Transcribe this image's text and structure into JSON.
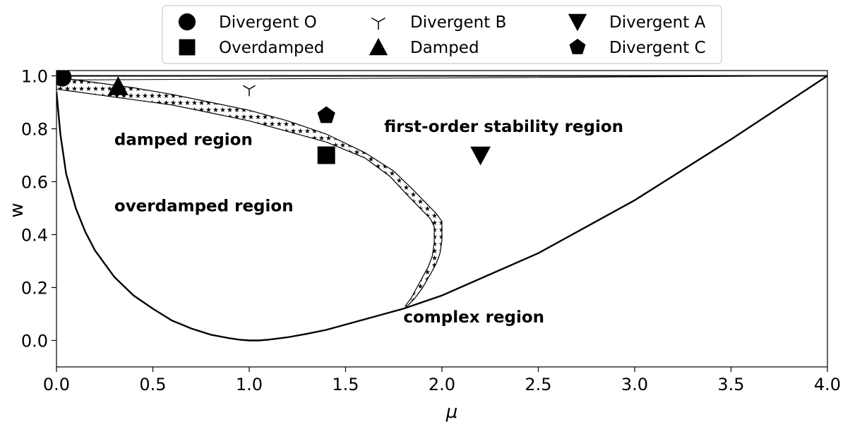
{
  "chart_data": {
    "type": "scatter",
    "xlabel": "μ",
    "ylabel": "w",
    "xlim": [
      0.0,
      4.0
    ],
    "ylim": [
      -0.1,
      1.02
    ],
    "x_ticks": [
      "0.0",
      "0.5",
      "1.0",
      "1.5",
      "2.0",
      "2.5",
      "3.0",
      "3.5",
      "4.0"
    ],
    "y_ticks": [
      "0.0",
      "0.2",
      "0.4",
      "0.6",
      "0.8",
      "1.0"
    ],
    "grid": false,
    "legend_position": "top-center",
    "legend": [
      {
        "name": "Divergent O",
        "marker": "circle"
      },
      {
        "name": "Overdamped",
        "marker": "square"
      },
      {
        "name": "Divergent B",
        "marker": "tri-y"
      },
      {
        "name": "Damped",
        "marker": "triangle-up"
      },
      {
        "name": "Divergent A",
        "marker": "triangle-down"
      },
      {
        "name": "Divergent C",
        "marker": "pentagon"
      }
    ],
    "series": [
      {
        "name": "Divergent O",
        "marker": "circle",
        "x": [
          0.03
        ],
        "y": [
          0.995
        ]
      },
      {
        "name": "Damped",
        "marker": "triangle-up",
        "x": [
          0.32
        ],
        "y": [
          0.96
        ]
      },
      {
        "name": "Divergent B",
        "marker": "tri-y",
        "x": [
          1.0
        ],
        "y": [
          0.95
        ]
      },
      {
        "name": "Divergent C",
        "marker": "pentagon",
        "x": [
          1.4
        ],
        "y": [
          0.85
        ]
      },
      {
        "name": "Overdamped",
        "marker": "square",
        "x": [
          1.4
        ],
        "y": [
          0.7
        ]
      },
      {
        "name": "Divergent A",
        "marker": "triangle-down",
        "x": [
          2.2
        ],
        "y": [
          0.7
        ]
      }
    ],
    "annotations": [
      {
        "text": "damped region",
        "x": 0.3,
        "y": 0.76
      },
      {
        "text": "overdamped region",
        "x": 0.3,
        "y": 0.51
      },
      {
        "text": "first-order stability region",
        "x": 1.7,
        "y": 0.81
      },
      {
        "text": "complex region",
        "x": 1.8,
        "y": 0.09
      }
    ],
    "boundary_curves": {
      "overdamped_boundary": {
        "x": [
          0.0,
          0.02,
          0.05,
          0.1,
          0.15,
          0.2,
          0.3,
          0.4,
          0.5,
          0.6,
          0.7,
          0.8,
          0.9,
          0.95,
          1.0,
          1.05,
          1.1,
          1.2,
          1.3,
          1.4,
          1.5,
          1.6,
          1.7,
          1.8
        ],
        "y": [
          0.94,
          0.78,
          0.63,
          0.5,
          0.41,
          0.34,
          0.24,
          0.17,
          0.12,
          0.075,
          0.045,
          0.022,
          0.008,
          0.003,
          0.0,
          0.0,
          0.003,
          0.012,
          0.025,
          0.04,
          0.06,
          0.08,
          0.1,
          0.12
        ]
      },
      "complex_to_stability_line": {
        "x": [
          1.8,
          2.0,
          2.5,
          3.0,
          3.5,
          4.0
        ],
        "y": [
          0.12,
          0.17,
          0.33,
          0.53,
          0.76,
          1.0
        ]
      },
      "damped_band_outer": {
        "x": [
          0.0,
          0.2,
          0.4,
          0.6,
          0.8,
          1.0,
          1.2,
          1.4,
          1.6,
          1.75,
          1.85,
          1.93,
          1.97,
          2.0,
          2.0,
          1.99,
          1.97,
          1.94,
          1.9,
          1.86,
          1.82
        ],
        "y": [
          0.995,
          0.975,
          0.955,
          0.93,
          0.9,
          0.87,
          0.83,
          0.78,
          0.71,
          0.64,
          0.57,
          0.51,
          0.48,
          0.45,
          0.38,
          0.33,
          0.29,
          0.25,
          0.2,
          0.16,
          0.13
        ]
      },
      "damped_band_inner": {
        "x": [
          0.0,
          0.2,
          0.4,
          0.6,
          0.8,
          1.0,
          1.2,
          1.4,
          1.6,
          1.73,
          1.82,
          1.9,
          1.94,
          1.96,
          1.96,
          1.95,
          1.93,
          1.9,
          1.87,
          1.84,
          1.81
        ],
        "y": [
          0.95,
          0.93,
          0.91,
          0.89,
          0.86,
          0.83,
          0.79,
          0.75,
          0.69,
          0.62,
          0.55,
          0.49,
          0.46,
          0.43,
          0.37,
          0.32,
          0.28,
          0.24,
          0.2,
          0.16,
          0.13
        ]
      }
    }
  }
}
